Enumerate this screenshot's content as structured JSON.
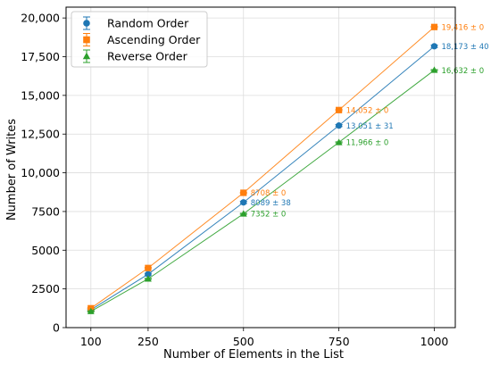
{
  "chart_data": {
    "type": "line",
    "title": "",
    "xlabel": "Number of Elements in the List",
    "ylabel": "Number of Writes",
    "x": [
      100,
      250,
      500,
      750,
      1000
    ],
    "x_ticks": [
      100,
      250,
      500,
      750,
      1000
    ],
    "x_tick_labels": [
      "100",
      "250",
      "500",
      "750",
      "1000"
    ],
    "xlim": [
      35,
      1055
    ],
    "ylim": [
      0,
      20700
    ],
    "y_ticks": [
      0,
      2500,
      5000,
      7500,
      10000,
      12500,
      15000,
      17500,
      20000
    ],
    "y_tick_labels": [
      "0",
      "2500",
      "5000",
      "7500",
      "10,000",
      "12,500",
      "15,000",
      "17,500",
      "20,000"
    ],
    "grid": true,
    "legend_position": "top-left",
    "series": [
      {
        "name": "Random Order",
        "color": "#1f77b4",
        "marker": "circle",
        "values": [
          1150,
          3450,
          8089,
          13051,
          18173
        ],
        "errors": [
          20,
          25,
          38,
          31,
          40
        ],
        "labels": [
          null,
          null,
          "8089 ± 38",
          "13,051 ± 31",
          "18,173 ± 40"
        ]
      },
      {
        "name": "Ascending Order",
        "color": "#ff7f0e",
        "marker": "square",
        "values": [
          1250,
          3850,
          8708,
          14052,
          19416
        ],
        "errors": [
          0,
          0,
          0,
          0,
          0
        ],
        "labels": [
          null,
          null,
          "8708 ± 0",
          "14,052 ± 0",
          "19,416 ± 0"
        ]
      },
      {
        "name": "Reverse Order",
        "color": "#2ca02c",
        "marker": "triangle",
        "values": [
          1050,
          3150,
          7352,
          11966,
          16632
        ],
        "errors": [
          0,
          0,
          0,
          0,
          0
        ],
        "labels": [
          null,
          null,
          "7352 ± 0",
          "11,966 ± 0",
          "16,632 ± 0"
        ]
      }
    ]
  }
}
